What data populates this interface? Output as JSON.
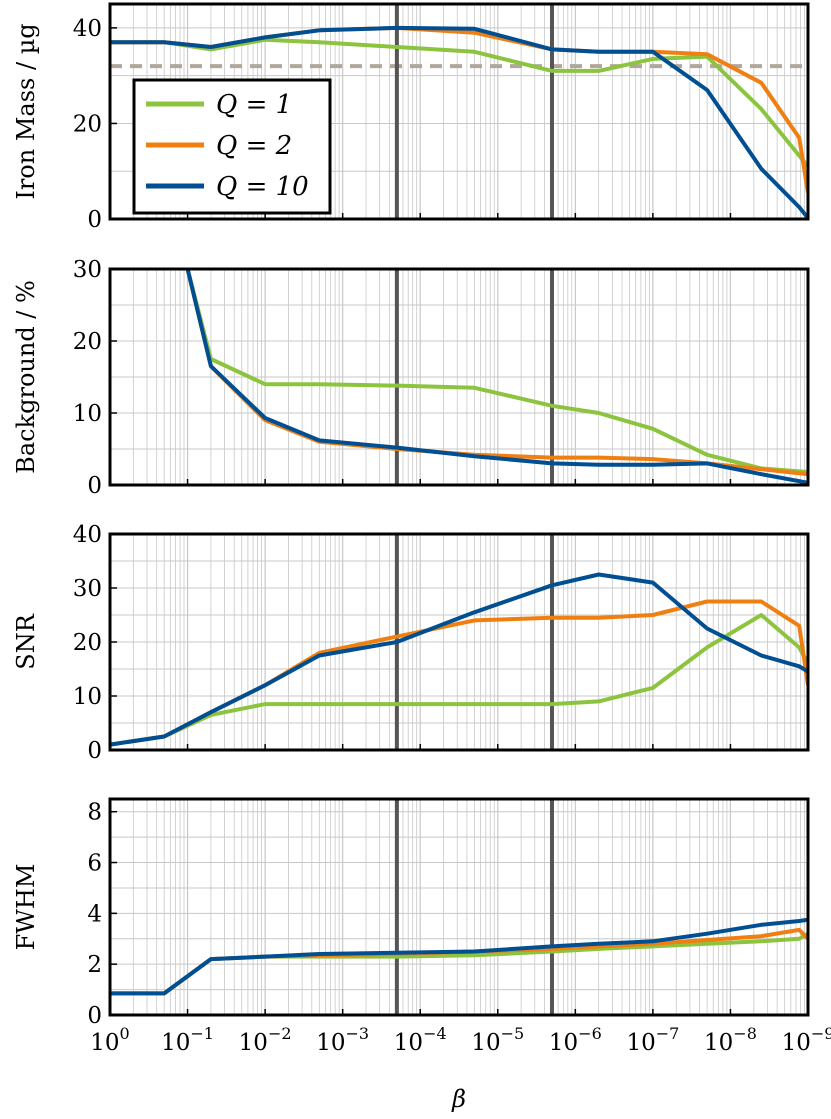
{
  "colors": {
    "q1": "#8cc43f",
    "q2": "#f07f12",
    "q10": "#004f93",
    "reference_line": "#b0a79a",
    "vertical_marker": "#555555",
    "grid": "#c8c8c8"
  },
  "x_axis": {
    "label": "β",
    "scale": "log-reversed",
    "range": [
      1,
      1e-09
    ],
    "tick_labels": [
      {
        "base": "10",
        "exp": "0"
      },
      {
        "base": "10",
        "exp": "−1"
      },
      {
        "base": "10",
        "exp": "−2"
      },
      {
        "base": "10",
        "exp": "−3"
      },
      {
        "base": "10",
        "exp": "−4"
      },
      {
        "base": "10",
        "exp": "−5"
      },
      {
        "base": "10",
        "exp": "−6"
      },
      {
        "base": "10",
        "exp": "−7"
      },
      {
        "base": "10",
        "exp": "−8"
      },
      {
        "base": "10",
        "exp": "−9"
      }
    ]
  },
  "vertical_markers_beta": [
    0.0002,
    2e-06
  ],
  "legend": {
    "placement": "top-left of first panel",
    "entries": [
      {
        "series": "q1",
        "label": "Q = 1"
      },
      {
        "series": "q2",
        "label": "Q = 2"
      },
      {
        "series": "q10",
        "label": "Q = 10"
      }
    ]
  },
  "chart_data": [
    {
      "type": "line",
      "ylabel": "Iron Mass / µg",
      "ylim": [
        0,
        45
      ],
      "yticks": [
        "0",
        "20",
        "40"
      ],
      "ytick_values": [
        0,
        20,
        40
      ],
      "reference_line_y": 32,
      "grid": true,
      "series": [
        {
          "key": "q1",
          "name": "Q = 1",
          "x": [
            1,
            0.2,
            0.05,
            0.01,
            0.002,
            0.0002,
            2e-05,
            2e-06,
            5e-07,
            1e-07,
            2e-08,
            4e-09,
            1e-09
          ],
          "values": [
            37,
            37,
            35.5,
            37.5,
            37,
            36,
            35,
            31,
            31,
            33.5,
            34,
            23,
            11
          ]
        },
        {
          "key": "q2",
          "name": "Q = 2",
          "x": [
            1,
            0.2,
            0.05,
            0.01,
            0.002,
            0.0002,
            2e-05,
            2e-06,
            5e-07,
            1e-07,
            2e-08,
            4e-09,
            1.3e-09,
            1e-09
          ],
          "values": [
            37,
            37,
            36,
            38,
            39.5,
            40,
            39,
            35.5,
            35,
            35,
            34.5,
            28.5,
            17,
            5.5
          ]
        },
        {
          "key": "q10",
          "name": "Q = 10",
          "x": [
            1,
            0.2,
            0.05,
            0.01,
            0.002,
            0.0002,
            2e-05,
            2e-06,
            5e-07,
            1e-07,
            2e-08,
            4e-09,
            1.3e-09,
            1e-09
          ],
          "values": [
            37,
            37,
            36,
            38,
            39.5,
            40,
            39.8,
            35.5,
            35,
            35,
            27,
            10.5,
            2.5,
            0.2
          ]
        }
      ]
    },
    {
      "type": "line",
      "ylabel": "Background / %",
      "ylim": [
        0,
        30
      ],
      "yticks": [
        "0",
        "10",
        "20",
        "30"
      ],
      "ytick_values": [
        0,
        10,
        20,
        30
      ],
      "grid": true,
      "series": [
        {
          "key": "q1",
          "name": "Q = 1",
          "x": [
            0.1,
            0.05,
            0.01,
            0.002,
            0.0002,
            2e-05,
            2e-06,
            5e-07,
            1e-07,
            2e-08,
            4e-09,
            1e-09
          ],
          "values": [
            30,
            17.5,
            14,
            14,
            13.8,
            13.5,
            11,
            10,
            7.8,
            4.2,
            2.3,
            1.8
          ]
        },
        {
          "key": "q2",
          "name": "Q = 2",
          "x": [
            0.1,
            0.05,
            0.01,
            0.002,
            0.0002,
            2e-05,
            2e-06,
            5e-07,
            1e-07,
            2e-08,
            4e-09,
            1e-09
          ],
          "values": [
            30,
            16.5,
            9,
            6,
            5,
            4.2,
            3.8,
            3.8,
            3.6,
            3,
            2.2,
            1.5
          ]
        },
        {
          "key": "q10",
          "name": "Q = 10",
          "x": [
            0.1,
            0.05,
            0.01,
            0.002,
            0.0002,
            2e-05,
            2e-06,
            5e-07,
            1e-07,
            2e-08,
            4e-09,
            1e-09
          ],
          "values": [
            30,
            16.5,
            9.3,
            6.2,
            5.2,
            4,
            3,
            2.8,
            2.8,
            3,
            1.5,
            0.3
          ]
        }
      ]
    },
    {
      "type": "line",
      "ylabel": "SNR",
      "ylim": [
        0,
        40
      ],
      "yticks": [
        "0",
        "10",
        "20",
        "30",
        "40"
      ],
      "ytick_values": [
        0,
        10,
        20,
        30,
        40
      ],
      "grid": true,
      "series": [
        {
          "key": "q1",
          "name": "Q = 1",
          "x": [
            1,
            0.2,
            0.05,
            0.01,
            0.002,
            0.0002,
            2e-05,
            2e-06,
            5e-07,
            1e-07,
            2e-08,
            4e-09,
            1.3e-09,
            1e-09
          ],
          "values": [
            1,
            2.5,
            6.5,
            8.5,
            8.5,
            8.5,
            8.5,
            8.5,
            9,
            11.5,
            19,
            25,
            19,
            16
          ]
        },
        {
          "key": "q2",
          "name": "Q = 2",
          "x": [
            1,
            0.2,
            0.05,
            0.01,
            0.002,
            0.0002,
            2e-05,
            2e-06,
            5e-07,
            1e-07,
            2e-08,
            4e-09,
            1.3e-09,
            1e-09
          ],
          "values": [
            1,
            2.5,
            7,
            12,
            18,
            21,
            24,
            24.5,
            24.5,
            25,
            27.5,
            27.5,
            23,
            12
          ]
        },
        {
          "key": "q10",
          "name": "Q = 10",
          "x": [
            1,
            0.2,
            0.05,
            0.01,
            0.002,
            0.0002,
            2e-05,
            2e-06,
            5e-07,
            1e-07,
            2e-08,
            4e-09,
            1.3e-09,
            1e-09
          ],
          "values": [
            1,
            2.5,
            7,
            12,
            17.5,
            20,
            25.5,
            30.5,
            32.5,
            31,
            22.5,
            17.5,
            15.5,
            14.5
          ]
        }
      ]
    },
    {
      "type": "line",
      "ylabel": "FWHM",
      "ylim": [
        0,
        8.5
      ],
      "yticks": [
        "0",
        "2",
        "4",
        "6",
        "8"
      ],
      "ytick_values": [
        0,
        2,
        4,
        6,
        8
      ],
      "grid": true,
      "series": [
        {
          "key": "q1",
          "name": "Q = 1",
          "x": [
            1,
            0.2,
            0.05,
            0.01,
            0.002,
            0.0002,
            2e-05,
            2e-06,
            5e-07,
            1e-07,
            2e-08,
            4e-09,
            1.3e-09,
            1e-09
          ],
          "values": [
            0.85,
            0.85,
            2.2,
            2.3,
            2.3,
            2.3,
            2.35,
            2.5,
            2.6,
            2.7,
            2.8,
            2.9,
            3,
            3.2
          ]
        },
        {
          "key": "q2",
          "name": "Q = 2",
          "x": [
            1,
            0.2,
            0.05,
            0.01,
            0.002,
            0.0002,
            2e-05,
            2e-06,
            5e-07,
            1e-07,
            2e-08,
            4e-09,
            1.3e-09,
            1e-09
          ],
          "values": [
            0.85,
            0.85,
            2.2,
            2.3,
            2.35,
            2.4,
            2.5,
            2.6,
            2.7,
            2.8,
            2.95,
            3.1,
            3.35,
            3
          ]
        },
        {
          "key": "q10",
          "name": "Q = 10",
          "x": [
            1,
            0.2,
            0.05,
            0.01,
            0.002,
            0.0002,
            2e-05,
            2e-06,
            5e-07,
            1e-07,
            2e-08,
            4e-09,
            1.3e-09,
            1e-09
          ],
          "values": [
            0.85,
            0.85,
            2.2,
            2.3,
            2.4,
            2.45,
            2.5,
            2.7,
            2.8,
            2.9,
            3.2,
            3.55,
            3.7,
            3.75
          ]
        }
      ]
    }
  ]
}
